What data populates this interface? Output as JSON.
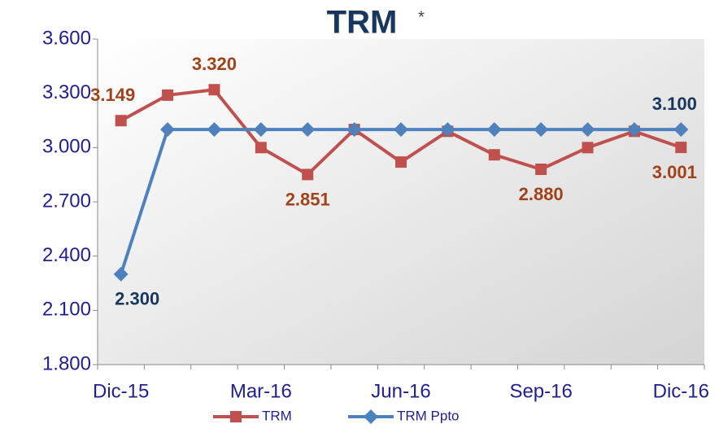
{
  "chart_data": {
    "type": "line",
    "title": "TRM",
    "annotation": "*",
    "categories": [
      "Dic-15",
      null,
      null,
      "Mar-16",
      null,
      null,
      "Jun-16",
      null,
      null,
      "Sep-16",
      null,
      null,
      "Dic-16"
    ],
    "series": [
      {
        "name": "TRM",
        "color": "#c0504d",
        "marker": "square",
        "values": [
          3149,
          3290,
          3320,
          3000,
          2851,
          3100,
          2920,
          3090,
          2960,
          2880,
          3000,
          3090,
          3001
        ],
        "value_labels": [
          "3.149",
          null,
          "3.320",
          null,
          "2.851",
          null,
          null,
          null,
          null,
          "2.880",
          null,
          null,
          "3.001"
        ],
        "label_color": "#a0421a"
      },
      {
        "name": "TRM Ppto",
        "color": "#4f81bd",
        "marker": "diamond",
        "values": [
          2300,
          3100,
          3100,
          3100,
          3100,
          3100,
          3100,
          3100,
          3100,
          3100,
          3100,
          3100,
          3100
        ],
        "value_labels": [
          "2.300",
          null,
          null,
          null,
          null,
          null,
          null,
          null,
          null,
          null,
          null,
          null,
          "3.100"
        ],
        "label_color": "#17375e"
      }
    ],
    "ylim": [
      1800,
      3600
    ],
    "yticks": [
      {
        "value": 1800,
        "label": "1.800"
      },
      {
        "value": 2100,
        "label": "2.100"
      },
      {
        "value": 2400,
        "label": "2.400"
      },
      {
        "value": 2700,
        "label": "2.700"
      },
      {
        "value": 3000,
        "label": "3.000"
      },
      {
        "value": 3300,
        "label": "3.300"
      },
      {
        "value": 3600,
        "label": "3.600"
      }
    ],
    "grid": false,
    "legend": "bottom"
  }
}
